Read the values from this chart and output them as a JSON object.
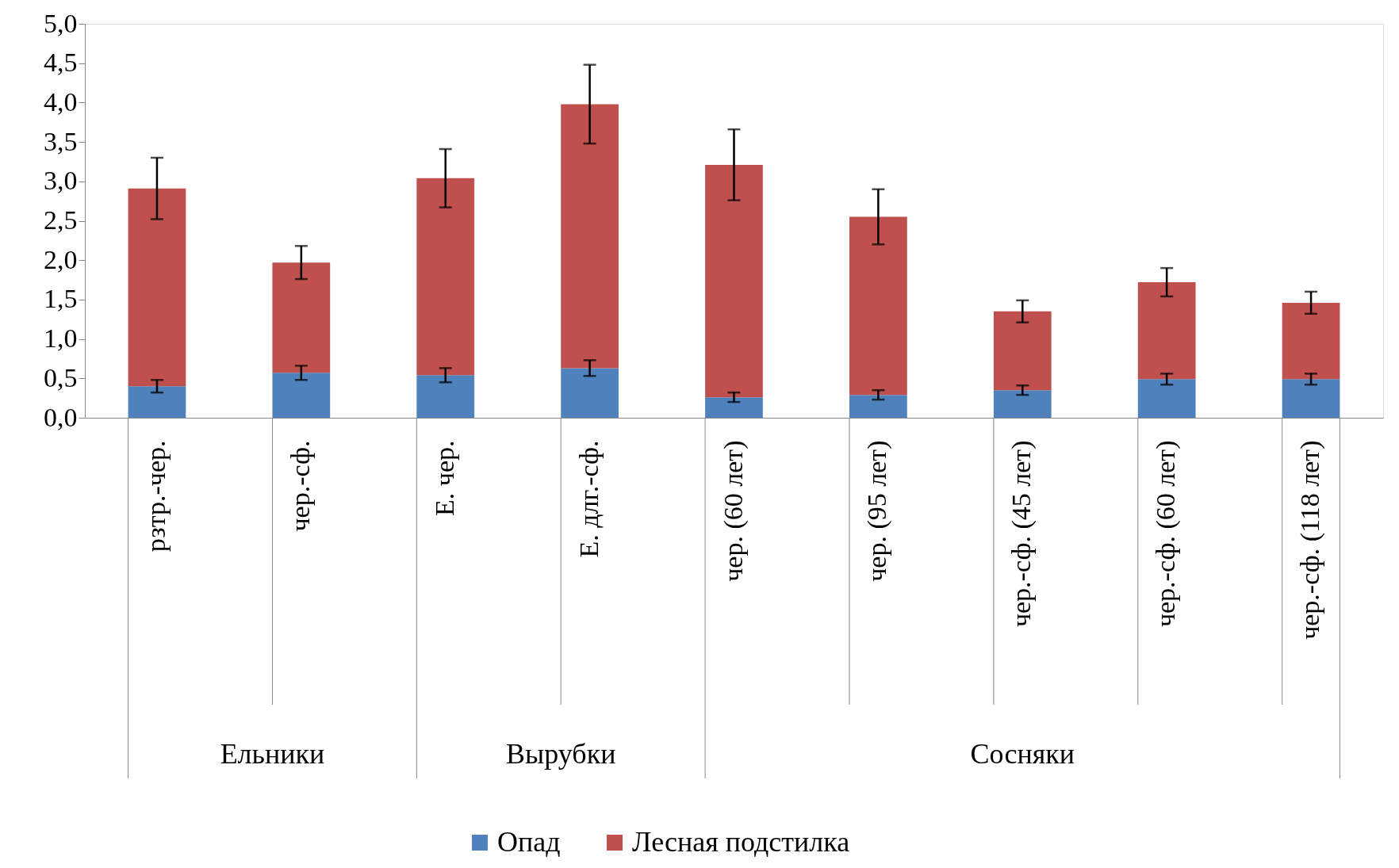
{
  "chart_data": {
    "type": "bar",
    "stacked": true,
    "categories": [
      "рзтр.-чер.",
      "чер.-сф.",
      "Е. чер.",
      "Е. длг.-сф.",
      "чер. (60 лет)",
      "чер. (95 лет)",
      "чер.-сф. (45 лет)",
      "чер.-сф. (60 лет)",
      "чер.-сф. (118 лет)"
    ],
    "series": [
      {
        "name": "Опад",
        "color": "#4f81bd",
        "values": [
          0.4,
          0.57,
          0.54,
          0.63,
          0.26,
          0.29,
          0.35,
          0.49,
          0.49
        ],
        "errors": [
          0.08,
          0.09,
          0.09,
          0.1,
          0.06,
          0.06,
          0.06,
          0.07,
          0.07
        ]
      },
      {
        "name": "Лесная подстилка",
        "color": "#c0504d",
        "values": [
          2.51,
          1.4,
          2.5,
          3.35,
          2.95,
          2.26,
          1.0,
          1.23,
          0.97
        ],
        "errors": [
          0.39,
          0.21,
          0.37,
          0.5,
          0.45,
          0.35,
          0.14,
          0.18,
          0.14
        ]
      }
    ],
    "ylim": [
      0,
      5
    ],
    "yticks": [
      {
        "value": 0,
        "label": "0,0"
      },
      {
        "value": 0.5,
        "label": "0,5"
      },
      {
        "value": 1,
        "label": "1,0"
      },
      {
        "value": 1.5,
        "label": "1,5"
      },
      {
        "value": 2,
        "label": "2,0"
      },
      {
        "value": 2.5,
        "label": "2,5"
      },
      {
        "value": 3,
        "label": "3,0"
      },
      {
        "value": 3.5,
        "label": "3,5"
      },
      {
        "value": 4,
        "label": "4,0"
      },
      {
        "value": 4.5,
        "label": "4,5"
      },
      {
        "value": 5,
        "label": "5,0"
      }
    ],
    "annotations": [
      "Ельники",
      "Вырубки",
      "Сосняки"
    ],
    "grid": false,
    "legend": "bottom"
  }
}
